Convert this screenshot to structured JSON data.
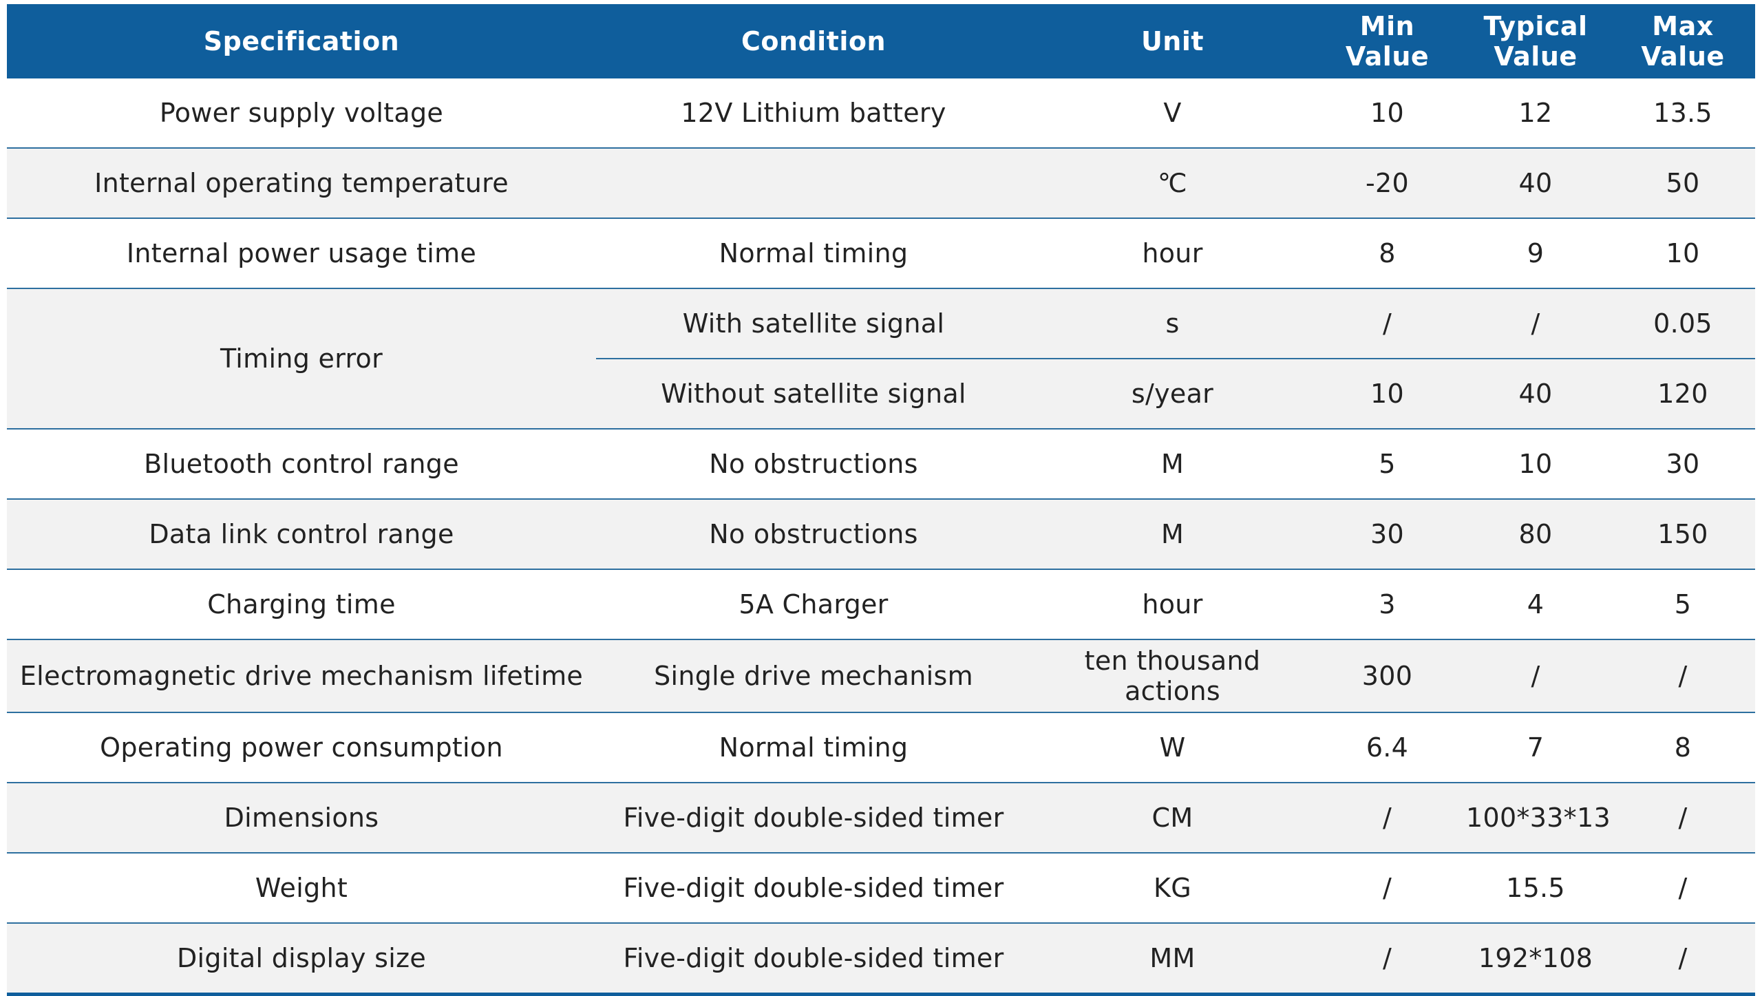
{
  "table": {
    "headers": {
      "specification": "Specification",
      "condition": "Condition",
      "unit": "Unit",
      "min_line1": "Min",
      "min_line2": "Value",
      "typical_line1": "Typical",
      "typical_line2": "Value",
      "max_line1": "Max",
      "max_line2": "Value"
    },
    "rows": [
      {
        "spec": "Power supply voltage",
        "condition": "12V Lithium battery",
        "unit": "V",
        "min": "10",
        "typical": "12",
        "max": "13.5"
      },
      {
        "spec": "Internal operating temperature",
        "condition": "",
        "unit": "℃",
        "min": "-20",
        "typical": "40",
        "max": "50"
      },
      {
        "spec": "Internal power usage time",
        "condition": "Normal timing",
        "unit": "hour",
        "min": "8",
        "typical": "9",
        "max": "10"
      },
      {
        "spec": "Timing error",
        "sub": [
          {
            "condition": "With satellite signal",
            "unit": "s",
            "min": "/",
            "typical": "/",
            "max": "0.05"
          },
          {
            "condition": "Without satellite signal",
            "unit": "s/year",
            "min": "10",
            "typical": "40",
            "max": "120"
          }
        ]
      },
      {
        "spec": "Bluetooth control range",
        "condition": "No obstructions",
        "unit": "M",
        "min": "5",
        "typical": "10",
        "max": "30"
      },
      {
        "spec": "Data link control range",
        "condition": "No obstructions",
        "unit": "M",
        "min": "30",
        "typical": "80",
        "max": "150"
      },
      {
        "spec": "Charging time",
        "condition": "5A Charger",
        "unit": "hour",
        "min": "3",
        "typical": "4",
        "max": "5"
      },
      {
        "spec": "Electromagnetic drive mechanism lifetime",
        "condition": "Single drive mechanism",
        "unit_line1": "ten thousand",
        "unit_line2": "actions",
        "min": "300",
        "typical": "/",
        "max": "/"
      },
      {
        "spec": "Operating power consumption",
        "condition": "Normal timing",
        "unit": "W",
        "min": "6.4",
        "typical": "7",
        "max": "8"
      },
      {
        "spec": "Dimensions",
        "condition": "Five-digit double-sided timer",
        "unit": "CM",
        "min": "/",
        "typical": "100*33*13",
        "max": "/"
      },
      {
        "spec": "Weight",
        "condition": "Five-digit double-sided timer",
        "unit": "KG",
        "min": "/",
        "typical": "15.5",
        "max": "/"
      },
      {
        "spec": "Digital display size",
        "condition": "Five-digit double-sided timer",
        "unit": "MM",
        "min": "/",
        "typical": "192*108",
        "max": "/"
      }
    ]
  },
  "colors": {
    "header_bg": "#0f5e9c",
    "header_text": "#ffffff",
    "row_alt_bg": "#f2f2f2",
    "row_border": "#2d6f9f"
  }
}
